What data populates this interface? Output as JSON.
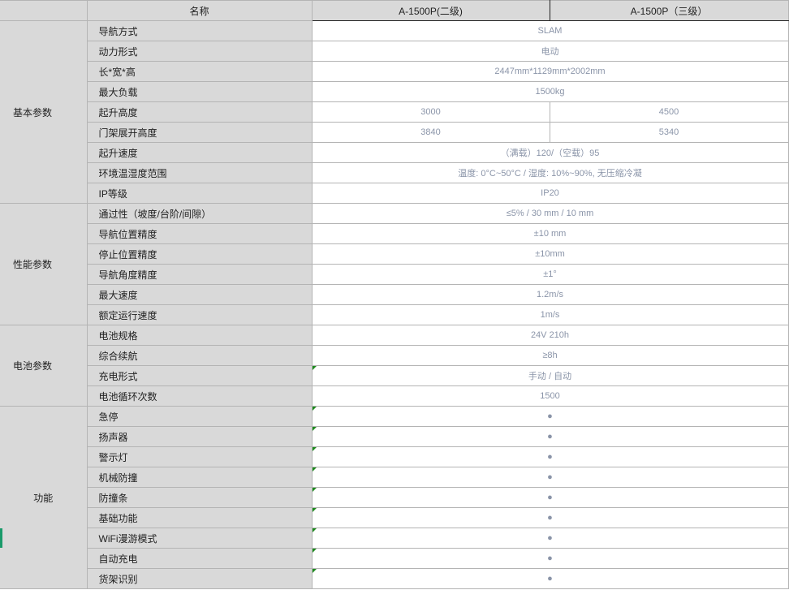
{
  "header": {
    "name_label": "名称",
    "col1": "A-1500P(二级)",
    "col2": "A-1500P（三级）"
  },
  "groups": [
    "基本参数",
    "性能参数",
    "电池参数",
    "功能"
  ],
  "rows": [
    {
      "name": "导航方式",
      "value": "SLAM"
    },
    {
      "name": "动力形式",
      "value": "电动"
    },
    {
      "name": "长*宽*高",
      "value": "2447mm*1129mm*2002mm"
    },
    {
      "name": "最大负载",
      "value": "1500kg"
    },
    {
      "name": "起升高度",
      "v1": "3000",
      "v2": "4500"
    },
    {
      "name": "门架展开高度",
      "v1": "3840",
      "v2": "5340"
    },
    {
      "name": "起升速度",
      "value": "（满载）120/（空载）95"
    },
    {
      "name": "环境温湿度范围",
      "value": "温度: 0°C~50°C / 湿度: 10%~90%, 无压缩冷凝"
    },
    {
      "name": "IP等级",
      "value": "IP20"
    },
    {
      "name": "通过性（坡度/台阶/间隙）",
      "value": "≤5% / 30 mm / 10 mm"
    },
    {
      "name": "导航位置精度",
      "value": "±10 mm"
    },
    {
      "name": "停止位置精度",
      "value": "±10mm"
    },
    {
      "name": "导航角度精度",
      "value": "±1°"
    },
    {
      "name": "最大速度",
      "value": "1.2m/s"
    },
    {
      "name": "额定运行速度",
      "value": "1m/s"
    },
    {
      "name": "电池规格",
      "value": "24V 210h"
    },
    {
      "name": "综合续航",
      "value": "≥8h"
    },
    {
      "name": "充电形式",
      "value": "手动 / 自动"
    },
    {
      "name": "电池循环次数",
      "value": "1500"
    },
    {
      "name": "急停",
      "value": "●"
    },
    {
      "name": "扬声器",
      "value": "●"
    },
    {
      "name": "警示灯",
      "value": "●"
    },
    {
      "name": "机械防撞",
      "value": "●"
    },
    {
      "name": "防撞条",
      "value": "●"
    },
    {
      "name": "基础功能",
      "value": "●"
    },
    {
      "name": "WiFi漫游模式",
      "value": "●"
    },
    {
      "name": "自动充电",
      "value": "●"
    },
    {
      "name": "货架识别",
      "value": "●"
    }
  ],
  "colors": {
    "label_bg": "#d9d9d9",
    "value_text": "#8a94a8",
    "comment_marker": "#1e8a1e"
  }
}
